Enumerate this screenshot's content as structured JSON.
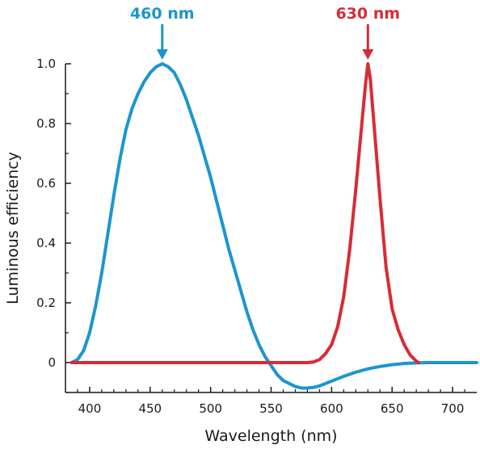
{
  "chart_data": {
    "type": "line",
    "xlabel": "Wavelength (nm)",
    "ylabel": "Luminous efficiency",
    "xlim": [
      380,
      720
    ],
    "ylim": [
      -0.1,
      1.0
    ],
    "x_ticks": [
      400,
      450,
      500,
      550,
      600,
      650,
      700
    ],
    "y_ticks": [
      0,
      0.2,
      0.4,
      0.6,
      0.8,
      1.0
    ],
    "y_tick_labels": [
      "0",
      "0.2",
      "0.4",
      "0.6",
      "0.8",
      "1.0"
    ],
    "grid": false,
    "colors": {
      "blue": "#1b96cf",
      "red": "#d92b34",
      "axis": "#1a1a1a"
    },
    "series": [
      {
        "color": "blue",
        "points": [
          [
            385,
            0.0
          ],
          [
            390,
            0.01
          ],
          [
            395,
            0.04
          ],
          [
            400,
            0.1
          ],
          [
            405,
            0.19
          ],
          [
            410,
            0.3
          ],
          [
            415,
            0.43
          ],
          [
            420,
            0.56
          ],
          [
            425,
            0.68
          ],
          [
            430,
            0.78
          ],
          [
            435,
            0.85
          ],
          [
            440,
            0.9
          ],
          [
            445,
            0.94
          ],
          [
            450,
            0.97
          ],
          [
            455,
            0.99
          ],
          [
            460,
            1.0
          ],
          [
            465,
            0.99
          ],
          [
            470,
            0.97
          ],
          [
            475,
            0.93
          ],
          [
            480,
            0.88
          ],
          [
            485,
            0.82
          ],
          [
            490,
            0.76
          ],
          [
            495,
            0.69
          ],
          [
            500,
            0.62
          ],
          [
            505,
            0.54
          ],
          [
            510,
            0.46
          ],
          [
            515,
            0.38
          ],
          [
            520,
            0.31
          ],
          [
            525,
            0.24
          ],
          [
            530,
            0.17
          ],
          [
            535,
            0.11
          ],
          [
            540,
            0.06
          ],
          [
            545,
            0.02
          ],
          [
            550,
            -0.01
          ],
          [
            555,
            -0.04
          ],
          [
            560,
            -0.06
          ],
          [
            565,
            -0.07
          ],
          [
            570,
            -0.08
          ],
          [
            575,
            -0.085
          ],
          [
            580,
            -0.085
          ],
          [
            585,
            -0.083
          ],
          [
            590,
            -0.078
          ],
          [
            595,
            -0.07
          ],
          [
            600,
            -0.062
          ],
          [
            610,
            -0.046
          ],
          [
            620,
            -0.032
          ],
          [
            630,
            -0.021
          ],
          [
            640,
            -0.013
          ],
          [
            650,
            -0.007
          ],
          [
            660,
            -0.003
          ],
          [
            670,
            -0.001
          ],
          [
            680,
            0.0
          ],
          [
            700,
            0.0
          ],
          [
            720,
            0.0
          ]
        ]
      },
      {
        "color": "red",
        "points": [
          [
            385,
            0.0
          ],
          [
            550,
            0.0
          ],
          [
            580,
            0.0
          ],
          [
            585,
            0.002
          ],
          [
            590,
            0.01
          ],
          [
            595,
            0.03
          ],
          [
            600,
            0.06
          ],
          [
            605,
            0.12
          ],
          [
            610,
            0.22
          ],
          [
            615,
            0.38
          ],
          [
            620,
            0.58
          ],
          [
            625,
            0.8
          ],
          [
            628,
            0.93
          ],
          [
            630,
            1.0
          ],
          [
            632,
            0.95
          ],
          [
            635,
            0.8
          ],
          [
            640,
            0.55
          ],
          [
            645,
            0.32
          ],
          [
            650,
            0.18
          ],
          [
            655,
            0.11
          ],
          [
            660,
            0.06
          ],
          [
            665,
            0.025
          ],
          [
            670,
            0.005
          ],
          [
            672,
            0.0
          ]
        ]
      }
    ],
    "annotations": [
      {
        "text": "460 nm",
        "x": 460,
        "y": 1.0,
        "color": "blue"
      },
      {
        "text": "630 nm",
        "x": 630,
        "y": 1.0,
        "color": "red"
      }
    ]
  }
}
